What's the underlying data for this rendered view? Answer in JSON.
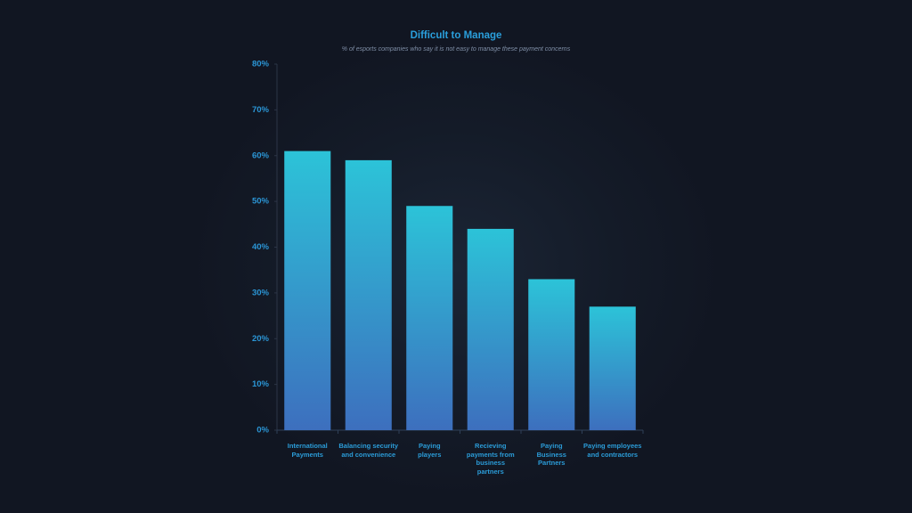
{
  "chart_data": {
    "type": "bar",
    "title": "Difficult to Manage",
    "subtitle": "% of esports companies who say it is not easy to manage these payment concerns",
    "categories": [
      "International Payments",
      "Balancing security and convenience",
      "Paying players",
      "Recieving payments from business partners",
      "Paying Business Partners",
      "Paying employees and contractors"
    ],
    "values": [
      61,
      59,
      49,
      44,
      33,
      27
    ],
    "color": "#2cc3d8",
    "ylim": [
      0,
      80
    ],
    "yticks": [
      {
        "value": 0,
        "label": "0%"
      },
      {
        "value": 10,
        "label": "10%"
      },
      {
        "value": 20,
        "label": "20%"
      },
      {
        "value": 30,
        "label": "30%"
      },
      {
        "value": 40,
        "label": "40%"
      },
      {
        "value": 50,
        "label": "50%"
      },
      {
        "value": 60,
        "label": "60%"
      },
      {
        "value": 70,
        "label": "70%"
      },
      {
        "value": 80,
        "label": "80%"
      }
    ],
    "grid": false
  }
}
